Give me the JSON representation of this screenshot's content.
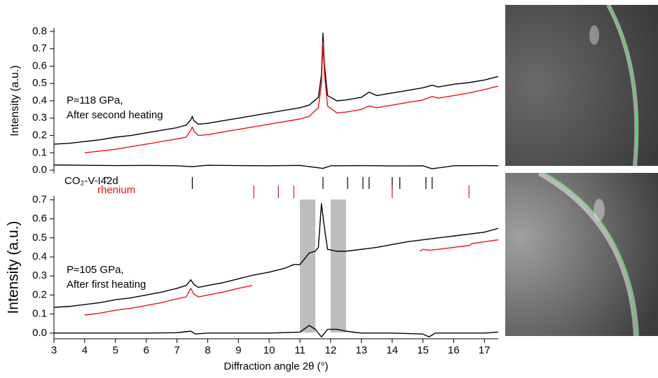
{
  "chart_data": [
    {
      "type": "line",
      "ylabel": "Intensity (a.u.)",
      "xlim": [
        3,
        17.45
      ],
      "ylim": [
        -0.02,
        0.82
      ],
      "yticks": [
        {
          "value": 0,
          "label": "0.0"
        },
        0.1,
        0.2,
        0.3,
        0.4,
        0.5,
        0.6,
        0.7,
        0.8
      ],
      "annotations": [
        "P≈118 GPa,",
        "After second heating"
      ],
      "series": [
        {
          "color": "#000000",
          "x": [
            3,
            3.5,
            4,
            4.5,
            5,
            5.5,
            6,
            6.5,
            7,
            7.3,
            7.45,
            7.5,
            7.55,
            7.7,
            8,
            8.5,
            9,
            9.5,
            10,
            10.5,
            11,
            11.3,
            11.6,
            11.7,
            11.75,
            11.8,
            11.9,
            12.2,
            12.5,
            13,
            13.25,
            13.5,
            14,
            14.5,
            15,
            15.3,
            15.5,
            16,
            16.5,
            17,
            17.45
          ],
          "values": [
            0.15,
            0.155,
            0.165,
            0.175,
            0.19,
            0.2,
            0.215,
            0.23,
            0.245,
            0.26,
            0.29,
            0.31,
            0.285,
            0.265,
            0.27,
            0.285,
            0.3,
            0.315,
            0.33,
            0.345,
            0.36,
            0.375,
            0.42,
            0.55,
            0.79,
            0.6,
            0.43,
            0.4,
            0.405,
            0.42,
            0.45,
            0.43,
            0.445,
            0.46,
            0.475,
            0.49,
            0.48,
            0.495,
            0.505,
            0.52,
            0.54
          ]
        },
        {
          "color": "#e8141b",
          "x": [
            4,
            4.5,
            5,
            5.5,
            6,
            6.5,
            7,
            7.3,
            7.45,
            7.5,
            7.55,
            7.7,
            8,
            8.5,
            9,
            9.5,
            10,
            10.5,
            11,
            11.3,
            11.6,
            11.7,
            11.75,
            11.8,
            11.9,
            12.2,
            12.5,
            13,
            13.25,
            13.5,
            14,
            14.5,
            15,
            15.3,
            15.5,
            16,
            16.5,
            17,
            17.45
          ],
          "values": [
            0.1,
            0.11,
            0.12,
            0.135,
            0.15,
            0.165,
            0.18,
            0.19,
            0.23,
            0.25,
            0.225,
            0.2,
            0.205,
            0.22,
            0.235,
            0.25,
            0.265,
            0.28,
            0.295,
            0.31,
            0.36,
            0.5,
            0.74,
            0.55,
            0.37,
            0.33,
            0.335,
            0.35,
            0.37,
            0.36,
            0.375,
            0.39,
            0.405,
            0.425,
            0.415,
            0.43,
            0.445,
            0.465,
            0.485
          ]
        },
        {
          "color": "#000000",
          "x": [
            3,
            4,
            5,
            6,
            7,
            7.5,
            8,
            9,
            10,
            11,
            11.75,
            12,
            13,
            14,
            15,
            15.3,
            16,
            17,
            17.45
          ],
          "values": [
            0.03,
            0.028,
            0.026,
            0.027,
            0.025,
            0.02,
            0.028,
            0.026,
            0.025,
            0.027,
            0.01,
            0.025,
            0.026,
            0.024,
            0.025,
            0.008,
            0.025,
            0.026,
            0.025
          ]
        }
      ],
      "reflections": [
        {
          "name": "CO₂-V-I4̄2d",
          "color": "#000000",
          "positions": [
            7.5,
            11.75,
            12.55,
            13.05,
            13.25,
            14.0,
            14.25,
            15.1,
            15.3
          ]
        },
        {
          "name": "rhenium",
          "color": "#e8141b",
          "positions": [
            9.5,
            10.3,
            10.8,
            14.0,
            16.5
          ]
        }
      ]
    },
    {
      "type": "line",
      "ylabel": "Intensity (a.u.)",
      "xlabel": "Diffraction angle 2θ (°)",
      "xlim": [
        3,
        17.45
      ],
      "ylim": [
        -0.03,
        0.72
      ],
      "xticks": [
        3,
        4,
        5,
        6,
        7,
        8,
        9,
        10,
        11,
        12,
        13,
        14,
        15,
        16,
        17
      ],
      "yticks": [
        {
          "value": 0,
          "label": "0.0"
        },
        0.1,
        0.2,
        0.3,
        0.4,
        0.5,
        0.6,
        0.7
      ],
      "annotations": [
        "P≈105 GPa,",
        "After first heating"
      ],
      "excluded_regions": [
        [
          11.0,
          11.5
        ],
        [
          12.0,
          12.5
        ]
      ],
      "excluded_color": "#bdbdbd",
      "series": [
        {
          "color": "#000000",
          "x": [
            3,
            3.5,
            4,
            4.5,
            5,
            5.5,
            6,
            6.5,
            7,
            7.3,
            7.45,
            7.55,
            7.7,
            8,
            8.5,
            9,
            9.5,
            10,
            10.5,
            10.8,
            11,
            11.3,
            11.5,
            11.6,
            11.7,
            11.8,
            11.9,
            12.2,
            12.5,
            13,
            13.5,
            14,
            14.5,
            15,
            15.5,
            16,
            16.5,
            17,
            17.45
          ],
          "values": [
            0.135,
            0.14,
            0.15,
            0.16,
            0.175,
            0.185,
            0.2,
            0.215,
            0.235,
            0.25,
            0.28,
            0.255,
            0.24,
            0.25,
            0.265,
            0.285,
            0.305,
            0.32,
            0.34,
            0.36,
            0.36,
            0.42,
            0.43,
            0.45,
            0.68,
            0.55,
            0.44,
            0.43,
            0.43,
            0.44,
            0.45,
            0.465,
            0.48,
            0.49,
            0.5,
            0.51,
            0.52,
            0.53,
            0.55
          ]
        },
        {
          "color": "#e8141b",
          "x": [
            4,
            4.5,
            5,
            5.5,
            6,
            6.5,
            7,
            7.3,
            7.45,
            7.55,
            7.7,
            8,
            8.5,
            9,
            9.45,
            null,
            14.9,
            15,
            15.2,
            15.5,
            16,
            16.5,
            16.6,
            17,
            17.45
          ],
          "values": [
            0.095,
            0.105,
            0.12,
            0.13,
            0.145,
            0.16,
            0.18,
            0.19,
            0.235,
            0.205,
            0.19,
            0.2,
            0.215,
            0.235,
            0.25,
            null,
            0.43,
            0.44,
            0.435,
            0.44,
            0.45,
            0.46,
            0.47,
            0.48,
            0.49
          ]
        },
        {
          "color": "#000000",
          "x": [
            3,
            4,
            5,
            6,
            7,
            7.45,
            7.6,
            8,
            9,
            10,
            11,
            11.3,
            11.5,
            11.7,
            11.9,
            12.2,
            12.5,
            13,
            14,
            15,
            15.2,
            15.4,
            16,
            17,
            17.45
          ],
          "values": [
            0,
            0,
            0,
            0,
            0.002,
            0.01,
            -0.005,
            0,
            0,
            0,
            0.005,
            0.04,
            0.02,
            -0.02,
            0.02,
            0.02,
            0.01,
            0,
            0,
            -0.005,
            -0.02,
            0,
            0,
            0,
            0.005
          ]
        }
      ]
    }
  ]
}
